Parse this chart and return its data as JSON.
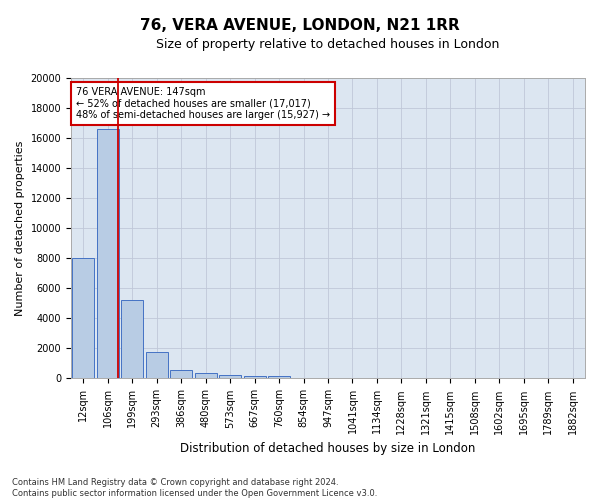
{
  "title": "76, VERA AVENUE, LONDON, N21 1RR",
  "subtitle": "Size of property relative to detached houses in London",
  "xlabel": "Distribution of detached houses by size in London",
  "ylabel": "Number of detached properties",
  "categories": [
    "12sqm",
    "106sqm",
    "199sqm",
    "293sqm",
    "386sqm",
    "480sqm",
    "573sqm",
    "667sqm",
    "760sqm",
    "854sqm",
    "947sqm",
    "1041sqm",
    "1134sqm",
    "1228sqm",
    "1321sqm",
    "1415sqm",
    "1508sqm",
    "1602sqm",
    "1695sqm",
    "1789sqm",
    "1882sqm"
  ],
  "values": [
    8050,
    16600,
    5200,
    1750,
    550,
    350,
    230,
    170,
    130,
    50,
    10,
    5,
    3,
    2,
    1,
    1,
    1,
    0,
    0,
    0,
    0
  ],
  "bar_color": "#b8cce4",
  "bar_edge_color": "#4472c4",
  "vline_x": 1.42,
  "vline_color": "#cc0000",
  "annotation_text": "76 VERA AVENUE: 147sqm\n← 52% of detached houses are smaller (17,017)\n48% of semi-detached houses are larger (15,927) →",
  "annotation_box_color": "#ffffff",
  "annotation_box_edge": "#cc0000",
  "ylim": [
    0,
    20000
  ],
  "yticks": [
    0,
    2000,
    4000,
    6000,
    8000,
    10000,
    12000,
    14000,
    16000,
    18000,
    20000
  ],
  "grid_color": "#c0c8d8",
  "background_color": "#dce6f1",
  "footnote": "Contains HM Land Registry data © Crown copyright and database right 2024.\nContains public sector information licensed under the Open Government Licence v3.0.",
  "title_fontsize": 11,
  "subtitle_fontsize": 9,
  "xlabel_fontsize": 8.5,
  "ylabel_fontsize": 8,
  "tick_fontsize": 7,
  "annot_fontsize": 7
}
